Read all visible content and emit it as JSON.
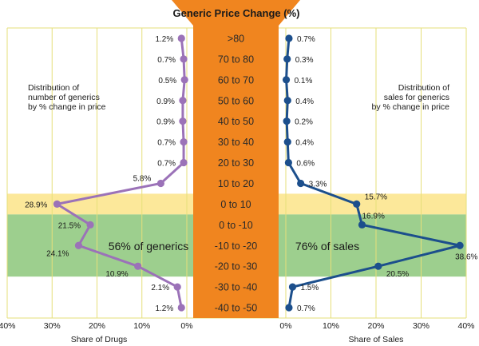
{
  "chart_data": {
    "type": "line",
    "title": "Generic Price Change (%)",
    "categories": [
      ">80",
      "70 to 80",
      "60 to 70",
      "50 to 60",
      "40 to 50",
      "30 to 40",
      "20 to 30",
      "10 to 20",
      "0 to 10",
      "0 to -10",
      "-10 to -20",
      "-20 to -30",
      "-30 to -40",
      "-40 to -50"
    ],
    "xlim": [
      0,
      40
    ],
    "x_ticks": [
      "40%",
      "30%",
      "20%",
      "10%",
      "0%"
    ],
    "series": [
      {
        "side": "left",
        "xlabel": "Share of Drugs",
        "values": [
          1.2,
          0.7,
          0.5,
          0.9,
          0.9,
          0.7,
          0.7,
          5.8,
          28.9,
          21.5,
          24.1,
          10.9,
          2.1,
          1.2
        ],
        "labels": [
          "1.2%",
          "0.7%",
          "0.5%",
          "0.9%",
          "0.9%",
          "0.7%",
          "0.7%",
          "5.8%",
          "28.9%",
          "21.5%",
          "24.1%",
          "10.9%",
          "2.1%",
          "1.2%"
        ],
        "color": "#9b72b8",
        "annotation": "Distribution of\nnumber of generics\nby % change in price",
        "band_label": "56% of generics"
      },
      {
        "side": "right",
        "xlabel": "Share of Sales",
        "values": [
          0.7,
          0.3,
          0.1,
          0.4,
          0.2,
          0.4,
          0.6,
          3.3,
          15.7,
          16.9,
          38.6,
          20.5,
          1.5,
          0.7
        ],
        "labels": [
          "0.7%",
          "0.3%",
          "0.1%",
          "0.4%",
          "0.2%",
          "0.4%",
          "0.6%",
          "3.3%",
          "15.7%",
          "16.9%",
          "38.6%",
          "20.5%",
          "1.5%",
          "0.7%"
        ],
        "color": "#1c4f8c",
        "annotation": "Distribution of\nsales for generics\nby % change in price",
        "band_label": "76% of sales"
      }
    ],
    "highlight_bands": [
      {
        "rows": [
          "0 to 10"
        ],
        "color": "#fce89a"
      },
      {
        "rows": [
          "0 to -10",
          "-10 to -20",
          "-20 to -30"
        ],
        "color": "#9dcf8e"
      }
    ],
    "center_color": "#f0851f",
    "grid": true
  }
}
